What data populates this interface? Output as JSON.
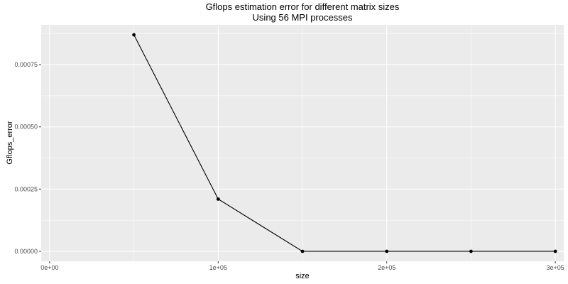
{
  "chart_data": {
    "type": "line",
    "title": "Gflops estimation error for different matrix sizes",
    "subtitle": "Using 56 MPI processes",
    "xlabel": "size",
    "ylabel": "Gflops_error",
    "x": [
      50000,
      100000,
      150000,
      200000,
      250000,
      300000
    ],
    "series": [
      {
        "values": [
          0.00087,
          0.00021,
          0.0,
          0.0,
          0.0,
          0.0
        ]
      }
    ],
    "xlim": [
      -5000,
      305000
    ],
    "ylim": [
      -4e-05,
      0.00091
    ],
    "x_ticks": [
      0,
      100000,
      200000,
      300000
    ],
    "x_tick_labels": [
      "0e+00",
      "1e+05",
      "2e+05",
      "3e+05"
    ],
    "x_minor_ticks": [
      50000,
      150000,
      250000
    ],
    "y_ticks": [
      0.0,
      0.00025,
      0.0005,
      0.00075
    ],
    "y_tick_labels": [
      "0.00000",
      "0.00025",
      "0.00050",
      "0.00075"
    ],
    "y_minor_ticks": [
      0.000125,
      0.000375,
      0.000625,
      0.000875
    ],
    "grid": true,
    "colors": {
      "panel": "#ebebeb",
      "grid": "#ffffff",
      "line": "#000000",
      "point": "#000000"
    }
  }
}
